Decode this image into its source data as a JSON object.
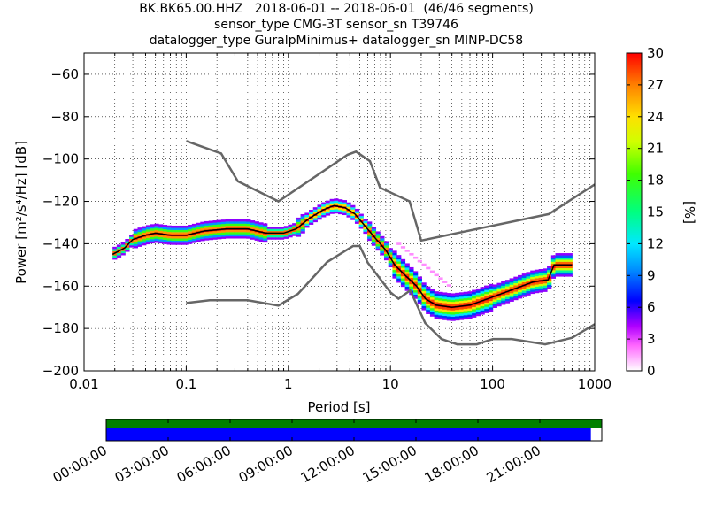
{
  "title_lines": [
    "BK.BK65.00.HHZ   2018-06-01 -- 2018-06-01  (46/46 segments)",
    "sensor_type CMG-3T sensor_sn T39746",
    "datalogger_type GuralpMinimus+ datalogger_sn MINP-DC58"
  ],
  "chart_data": {
    "type": "heatmap",
    "xlabel": "Period [s]",
    "ylabel": "Power [m²/s⁴/Hz] [dB]",
    "xscale": "log",
    "xlim": [
      0.01,
      1000
    ],
    "ylim": [
      -200,
      -50
    ],
    "xticks": [
      0.01,
      0.1,
      1,
      10,
      100,
      1000
    ],
    "xtick_labels": [
      "0.01",
      "0.1",
      "1",
      "10",
      "100",
      "1000"
    ],
    "yticks": [
      -200,
      -180,
      -160,
      -140,
      -120,
      -100,
      -80,
      -60
    ],
    "ytick_labels": [
      "−200",
      "−180",
      "−160",
      "−140",
      "−120",
      "−100",
      "−80",
      "−60"
    ],
    "grid": true,
    "colorbar": {
      "label": "[%]",
      "range": [
        0,
        30
      ],
      "ticks": [
        0,
        3,
        6,
        9,
        12,
        15,
        18,
        21,
        24,
        27,
        30
      ]
    },
    "nhnm": [
      [
        0.1,
        -91.5
      ],
      [
        0.22,
        -97.4
      ],
      [
        0.32,
        -110.5
      ],
      [
        0.8,
        -120.0
      ],
      [
        3.8,
        -98.0
      ],
      [
        4.6,
        -96.5
      ],
      [
        6.3,
        -101.0
      ],
      [
        7.9,
        -113.5
      ],
      [
        15.4,
        -120.0
      ],
      [
        20,
        -138.5
      ],
      [
        354.8,
        -126.0
      ],
      [
        1000,
        -112.0
      ]
    ],
    "nlnm": [
      [
        0.1,
        -168.0
      ],
      [
        0.17,
        -166.7
      ],
      [
        0.4,
        -166.7
      ],
      [
        0.8,
        -169.2
      ],
      [
        1.24,
        -163.7
      ],
      [
        2.4,
        -148.6
      ],
      [
        4.3,
        -141.1
      ],
      [
        5.0,
        -141.1
      ],
      [
        6.0,
        -149.0
      ],
      [
        10.0,
        -163.0
      ],
      [
        12.0,
        -166.0
      ],
      [
        15.6,
        -162.0
      ],
      [
        21.9,
        -177.5
      ],
      [
        31.6,
        -185.0
      ],
      [
        45,
        -187.5
      ],
      [
        70,
        -187.5
      ],
      [
        101,
        -185.0
      ],
      [
        154,
        -185.0
      ],
      [
        328,
        -187.5
      ],
      [
        600,
        -184.4
      ],
      [
        1000,
        -178.0
      ]
    ],
    "median": [
      [
        0.019,
        -145
      ],
      [
        0.025,
        -142
      ],
      [
        0.03,
        -138
      ],
      [
        0.04,
        -136
      ],
      [
        0.05,
        -135
      ],
      [
        0.07,
        -136
      ],
      [
        0.1,
        -136
      ],
      [
        0.15,
        -134
      ],
      [
        0.25,
        -133
      ],
      [
        0.4,
        -133
      ],
      [
        0.6,
        -135
      ],
      [
        0.9,
        -135
      ],
      [
        1.2,
        -133
      ],
      [
        1.6,
        -128
      ],
      [
        2.2,
        -124
      ],
      [
        2.8,
        -122
      ],
      [
        3.6,
        -123
      ],
      [
        4.5,
        -126
      ],
      [
        5.5,
        -131
      ],
      [
        7,
        -137
      ],
      [
        9,
        -143
      ],
      [
        11,
        -150
      ],
      [
        14,
        -155
      ],
      [
        18,
        -160
      ],
      [
        22,
        -166
      ],
      [
        28,
        -169
      ],
      [
        40,
        -170
      ],
      [
        60,
        -169
      ],
      [
        90,
        -166
      ],
      [
        150,
        -162
      ],
      [
        250,
        -158
      ],
      [
        350,
        -157
      ],
      [
        400,
        -150
      ],
      [
        600,
        -150
      ]
    ],
    "time_axis": {
      "labels": [
        "00:00:00",
        "03:00:00",
        "06:00:00",
        "09:00:00",
        "12:00:00",
        "15:00:00",
        "18:00:00",
        "21:00:00"
      ],
      "data_coverage_fraction": 1.0,
      "psd_coverage_fraction": 0.978,
      "data_color": "#008000",
      "psd_color": "#0000ff"
    }
  }
}
